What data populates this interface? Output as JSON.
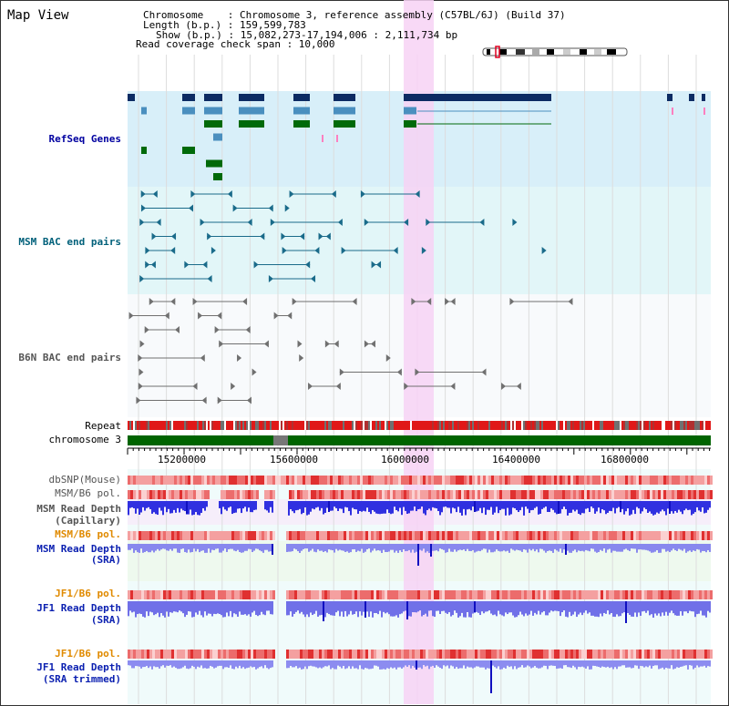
{
  "view": {
    "title": "Map View",
    "info": {
      "chromosome": "Chromosome    : Chromosome 3, reference assembly (C57BL/6J) (Build 37)",
      "length": "Length (b.p.) : 159,599,783",
      "show": "Show (b.p.) : 15,082,273-17,194,006 : 2,111,734 bp",
      "coverage": "Read coverage check span : 10,000"
    }
  },
  "tracks": {
    "refseq": "RefSeq Genes",
    "msm_bac": "MSM BAC end pairs",
    "b6n_bac": "B6N BAC end pairs",
    "repeat": "Repeat",
    "chromosome": "chromosome 3",
    "dbsnp": "dbSNP(Mouse)",
    "msm_b6_pol_1": "MSM/B6 pol.",
    "msm_depth_cap": "MSM Read Depth",
    "msm_depth_cap_sub": "(Capillary)",
    "msm_b6_pol_2": "MSM/B6 pol.",
    "msm_depth_sra": "MSM Read Depth",
    "msm_depth_sra_sub": "(SRA)",
    "jf1_b6_pol_1": "JF1/B6 pol.",
    "jf1_depth_sra": "JF1 Read Depth",
    "jf1_depth_sra_sub": "(SRA)",
    "jf1_b6_pol_2": "JF1/B6 pol.",
    "jf1_depth_trim": "JF1 Read Depth",
    "jf1_depth_trim_sub": "(SRA trimmed)"
  },
  "axis": {
    "ticks": [
      "15200000",
      "15600000",
      "16000000",
      "16400000",
      "16800000"
    ]
  },
  "colors": {
    "refseq_bg": "#d8eff9",
    "bac_bg": "#e2f6f8",
    "highlight": "#f7d2f5",
    "chromosome": "#006400",
    "snp": "#e02020",
    "depth": "#4040e0",
    "navy": "#0c2b63",
    "steel": "#4a8fbf",
    "green": "#006a0a"
  }
}
